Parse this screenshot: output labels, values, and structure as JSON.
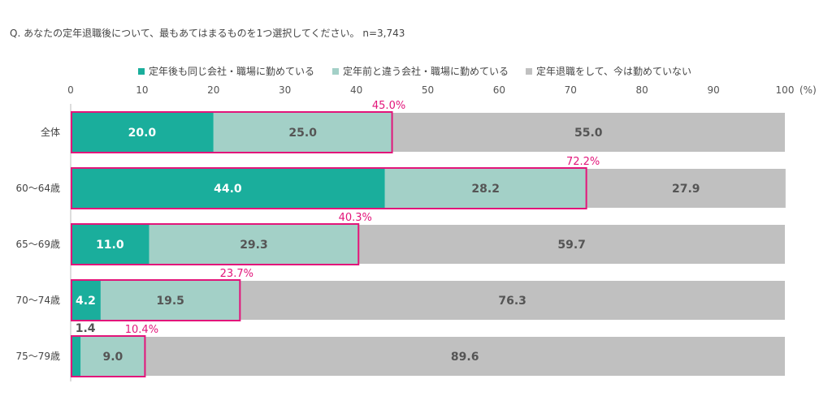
{
  "question": "Q.  あなたの定年退職後について、最もあてはまるものを1つ選択してください。  n=3,743",
  "chart_data": {
    "type": "bar",
    "orientation": "horizontal-stacked",
    "unit": "(%)",
    "xlim": [
      0,
      100
    ],
    "ticks": [
      "0",
      "10",
      "20",
      "30",
      "40",
      "50",
      "60",
      "70",
      "80",
      "90",
      "100"
    ],
    "categories": [
      "全体",
      "60～64歳",
      "65～69歳",
      "70～74歳",
      "75～79歳"
    ],
    "series": [
      {
        "name": "定年後も同じ会社・職場に勤めている",
        "color": "#1aae9c",
        "values": [
          20.0,
          44.0,
          11.0,
          4.2,
          1.4
        ],
        "labels": [
          "20.0",
          "44.0",
          "11.0",
          "4.2",
          "1.4"
        ]
      },
      {
        "name": "定年前と違う会社・職場に勤めている",
        "color": "#a3d0c7",
        "values": [
          25.0,
          28.2,
          29.3,
          19.5,
          9.0
        ],
        "labels": [
          "25.0",
          "28.2",
          "29.3",
          "19.5",
          "9.0"
        ]
      },
      {
        "name": "定年退職をして、今は勤めていない",
        "color": "#c0c0c0",
        "values": [
          55.0,
          27.9,
          59.7,
          76.3,
          89.6
        ],
        "labels": [
          "55.0",
          "27.9",
          "59.7",
          "76.3",
          "89.6"
        ]
      }
    ],
    "employed_total_labels": [
      "45.0%",
      "72.2%",
      "40.3%",
      "23.7%",
      "10.4%"
    ],
    "employed_total_values": [
      45.0,
      72.2,
      40.3,
      23.7,
      10.4
    ],
    "highlight_color": "#e2157a",
    "legend_position": "top"
  }
}
